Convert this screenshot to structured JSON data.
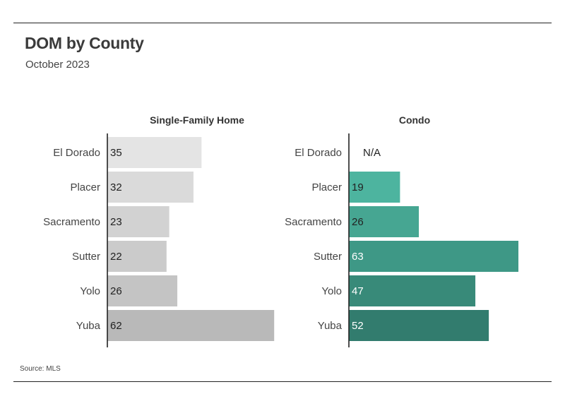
{
  "title": "DOM by County",
  "subtitle": "October 2023",
  "source": "Source: MLS",
  "chart_data": [
    {
      "type": "bar",
      "orientation": "horizontal",
      "title": "Single-Family Home",
      "categories": [
        "El Dorado",
        "Placer",
        "Sacramento",
        "Sutter",
        "Yolo",
        "Yuba"
      ],
      "values": [
        35,
        32,
        23,
        22,
        26,
        62
      ],
      "value_labels": [
        "35",
        "32",
        "23",
        "22",
        "26",
        "62"
      ],
      "xlim": [
        0,
        63
      ],
      "bar_colors": [
        "#e4e4e4",
        "#dadada",
        "#d2d2d2",
        "#cbcbcb",
        "#c4c4c4",
        "#b9b9b9"
      ],
      "label_colors": [
        "#222222",
        "#222222",
        "#222222",
        "#222222",
        "#222222",
        "#222222"
      ]
    },
    {
      "type": "bar",
      "orientation": "horizontal",
      "title": "Condo",
      "categories": [
        "El Dorado",
        "Placer",
        "Sacramento",
        "Sutter",
        "Yolo",
        "Yuba"
      ],
      "values": [
        null,
        19,
        26,
        63,
        47,
        52
      ],
      "value_labels": [
        "N/A",
        "19",
        "26",
        "63",
        "47",
        "52"
      ],
      "xlim": [
        0,
        63
      ],
      "bar_colors": [
        "#4db49f",
        "#4db49f",
        "#46a692",
        "#3e9886",
        "#388a79",
        "#327c6e"
      ],
      "label_colors": [
        "#222222",
        "#222222",
        "#222222",
        "#ffffff",
        "#ffffff",
        "#ffffff"
      ]
    }
  ]
}
